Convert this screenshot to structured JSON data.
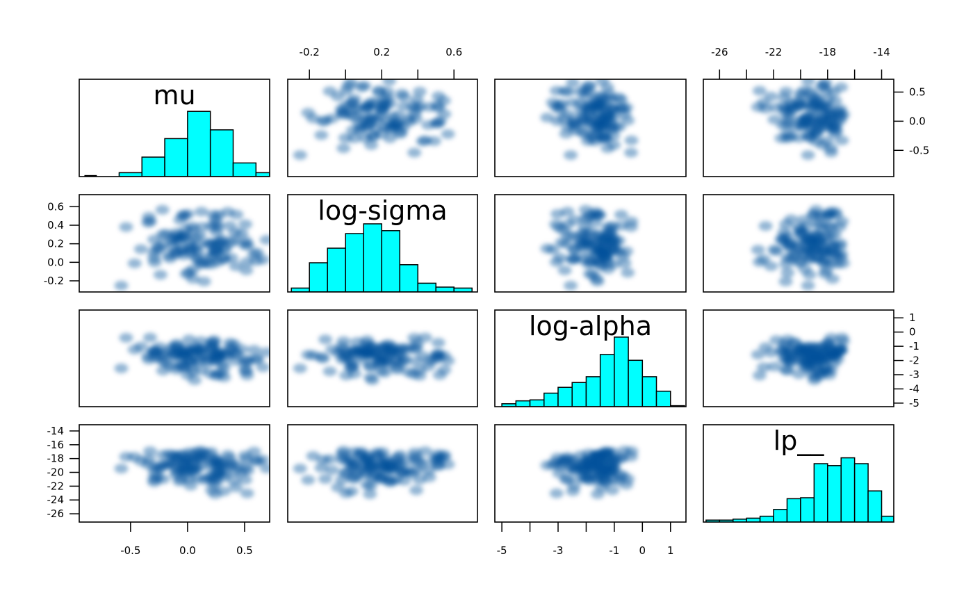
{
  "chart_data": {
    "type": "pairs",
    "variables": [
      "mu",
      "log-sigma",
      "log-alpha",
      "lp__"
    ],
    "colors": {
      "hist_fill": "#00ffff",
      "hist_stroke": "#000000",
      "density": "#08519c"
    },
    "ranges": {
      "mu": [
        -0.95,
        0.72
      ],
      "log-sigma": [
        -0.32,
        0.73
      ],
      "log-alpha": [
        -5.25,
        1.55
      ],
      "lp__": [
        -27.2,
        -13.1
      ]
    },
    "axes": {
      "top": [
        {
          "var": "log-sigma",
          "ticks": [
            -0.2,
            0.0,
            0.2,
            0.4,
            0.6
          ],
          "labels": [
            "-0.2",
            "0.2",
            "0.6"
          ],
          "label_values": [
            -0.2,
            0.2,
            0.6
          ]
        },
        {
          "var": "lp__",
          "ticks": [
            -26,
            -24,
            -22,
            -20,
            -18,
            -16,
            -14
          ],
          "labels": [
            "-26",
            "-22",
            "-18",
            "-14"
          ],
          "label_values": [
            -26,
            -22,
            -18,
            -14
          ]
        }
      ],
      "bottom": [
        {
          "var": "mu",
          "ticks": [
            -0.5,
            0.0,
            0.5
          ],
          "labels": [
            "-0.5",
            "0.0",
            "0.5"
          ],
          "label_values": [
            -0.5,
            0.0,
            0.5
          ]
        },
        {
          "var": "log-alpha",
          "ticks": [
            -5,
            -4,
            -3,
            -2,
            -1,
            0,
            1
          ],
          "labels": [
            "-5",
            "-3",
            "-1",
            "0",
            "1"
          ],
          "label_values": [
            -5,
            -3,
            -1,
            0,
            1
          ]
        }
      ],
      "left": [
        {
          "var": "log-sigma",
          "ticks": [
            0.6,
            0.4,
            0.2,
            0.0,
            -0.2
          ],
          "labels": [
            "0.6",
            "0.4",
            "0.2",
            "0.0",
            "-0.2"
          ],
          "label_values": [
            0.6,
            0.4,
            0.2,
            0.0,
            -0.2
          ]
        },
        {
          "var": "lp__",
          "ticks": [
            -14,
            -16,
            -18,
            -20,
            -22,
            -24,
            -26
          ],
          "labels": [
            "-14",
            "-16",
            "-18",
            "-20",
            "-22",
            "-24",
            "-26"
          ],
          "label_values": [
            -14,
            -16,
            -18,
            -20,
            -22,
            -24,
            -26
          ]
        }
      ],
      "right": [
        {
          "var": "mu",
          "ticks": [
            0.5,
            0.0,
            -0.5
          ],
          "labels": [
            "0.5",
            "0.0",
            "-0.5"
          ],
          "label_values": [
            0.5,
            0.0,
            -0.5
          ]
        },
        {
          "var": "log-alpha",
          "ticks": [
            1,
            0,
            -1,
            -2,
            -3,
            -4,
            -5
          ],
          "labels": [
            "1",
            "0",
            "-1",
            "-2",
            "-3",
            "-4",
            "-5"
          ],
          "label_values": [
            1,
            0,
            -1,
            -2,
            -3,
            -4,
            -5
          ]
        }
      ]
    },
    "histograms": {
      "mu": {
        "breaks": [
          -0.9,
          -0.8,
          -0.6,
          -0.4,
          -0.2,
          0.0,
          0.2,
          0.4,
          0.6,
          0.72
        ],
        "relative_heights": [
          0.01,
          0.0,
          0.04,
          0.2,
          0.39,
          0.67,
          0.48,
          0.14,
          0.04
        ]
      },
      "log-sigma": {
        "breaks": [
          -0.3,
          -0.2,
          -0.1,
          0.0,
          0.1,
          0.2,
          0.3,
          0.4,
          0.5,
          0.6,
          0.7
        ],
        "relative_heights": [
          0.04,
          0.3,
          0.45,
          0.6,
          0.7,
          0.63,
          0.28,
          0.09,
          0.05,
          0.04
        ]
      },
      "log-alpha": {
        "breaks": [
          -5.5,
          -5.0,
          -4.5,
          -4.0,
          -3.5,
          -3.0,
          -2.5,
          -2.0,
          -1.5,
          -1.0,
          -0.5,
          0.0,
          0.5,
          1.0,
          1.5
        ],
        "relative_heights": [
          0.0,
          0.03,
          0.06,
          0.07,
          0.14,
          0.2,
          0.25,
          0.31,
          0.54,
          0.72,
          0.48,
          0.31,
          0.16,
          0.01
        ]
      },
      "lp__": {
        "breaks": [
          -27,
          -26,
          -25,
          -24,
          -23,
          -22,
          -21,
          -20,
          -19,
          -18,
          -17,
          -16,
          -15,
          -14,
          -13
        ],
        "relative_heights": [
          0.02,
          0.02,
          0.03,
          0.04,
          0.06,
          0.13,
          0.24,
          0.25,
          0.6,
          0.58,
          0.66,
          0.6,
          0.32,
          0.06
        ]
      }
    }
  }
}
